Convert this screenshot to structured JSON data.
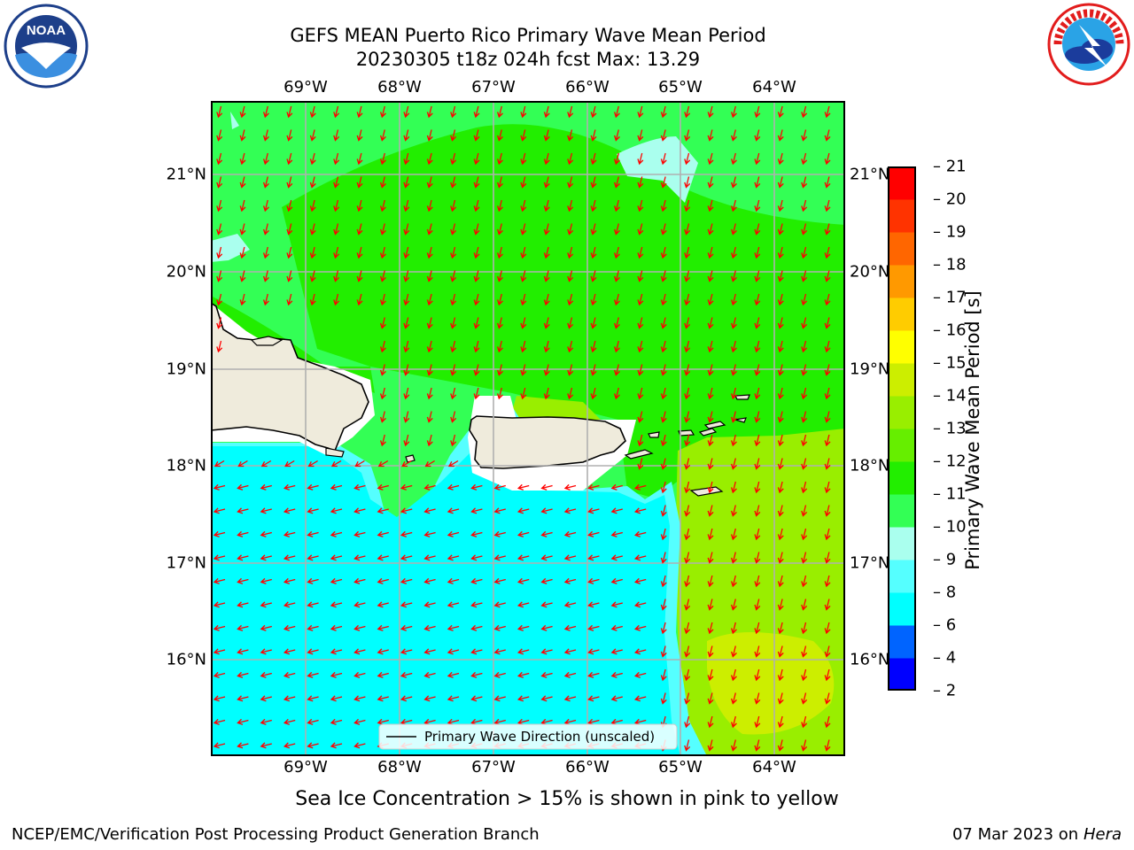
{
  "header": {
    "title_line1": "GEFS MEAN Puerto Rico Primary Wave Mean Period",
    "title_line2": "20230305 t18z 024h fcst   Max: 13.29"
  },
  "logos": {
    "left": "noaa-logo",
    "right": "national-weather-service-logo"
  },
  "map": {
    "lon_labels": [
      "69°W",
      "68°W",
      "67°W",
      "66°W",
      "65°W",
      "64°W"
    ],
    "lat_labels": [
      "21°N",
      "20°N",
      "19°N",
      "18°N",
      "17°N",
      "16°N"
    ],
    "legend_label": "Primary Wave Direction (unscaled)",
    "arrow_color": "#ff0000",
    "land_color": "#efebdc"
  },
  "colorbar": {
    "label": "Primary Wave Mean Period [s]",
    "ticks": [
      "2",
      "4",
      "6",
      "8",
      "9",
      "10",
      "11",
      "12",
      "13",
      "14",
      "15",
      "16",
      "17",
      "18",
      "19",
      "20",
      "21"
    ],
    "colors": [
      "#0000ff",
      "#0064ff",
      "#00ffff",
      "#55ffff",
      "#aaffee",
      "#33ff55",
      "#22ee00",
      "#66ee00",
      "#99ee00",
      "#ccee00",
      "#ffff00",
      "#ffcc00",
      "#ff9900",
      "#ff6600",
      "#ff3300",
      "#ff0000"
    ]
  },
  "footer": {
    "ice_note": "Sea Ice Concentration > 15% is shown in pink to yellow",
    "credit": "NCEP/EMC/Verification Post Processing Product Generation Branch",
    "date": "07 Mar 2023 on",
    "host": "Hera"
  }
}
